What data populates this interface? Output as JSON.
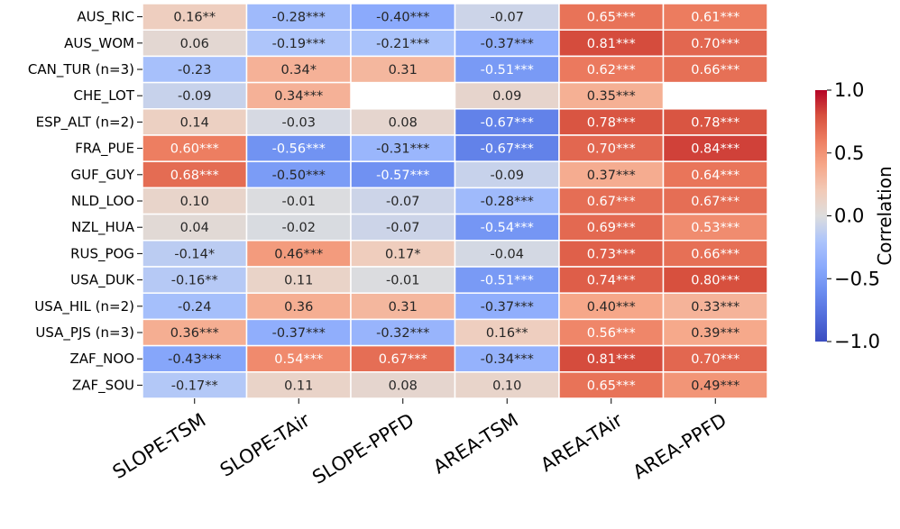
{
  "chart_data": {
    "type": "heatmap",
    "rows": [
      "AUS_RIC",
      "AUS_WOM",
      "CAN_TUR (n=3)",
      "CHE_LOT",
      "ESP_ALT (n=2)",
      "FRA_PUE",
      "GUF_GUY",
      "NLD_LOO",
      "NZL_HUA",
      "RUS_POG",
      "USA_DUK",
      "USA_HIL (n=2)",
      "USA_PJS (n=3)",
      "ZAF_NOO",
      "ZAF_SOU"
    ],
    "columns": [
      "SLOPE-TSM",
      "SLOPE-TAir",
      "SLOPE-PPFD",
      "AREA-TSM",
      "AREA-TAir",
      "AREA-PPFD"
    ],
    "values": [
      [
        0.16,
        -0.28,
        -0.4,
        -0.07,
        0.65,
        0.61
      ],
      [
        0.06,
        -0.19,
        -0.21,
        -0.37,
        0.81,
        0.7
      ],
      [
        -0.23,
        0.34,
        0.31,
        -0.51,
        0.62,
        0.66
      ],
      [
        -0.09,
        0.34,
        null,
        0.09,
        0.35,
        null
      ],
      [
        0.14,
        -0.03,
        0.08,
        -0.67,
        0.78,
        0.78
      ],
      [
        0.6,
        -0.56,
        -0.31,
        -0.67,
        0.7,
        0.84
      ],
      [
        0.68,
        -0.5,
        -0.57,
        -0.09,
        0.37,
        0.64
      ],
      [
        0.1,
        -0.01,
        -0.07,
        -0.28,
        0.67,
        0.67
      ],
      [
        0.04,
        -0.02,
        -0.07,
        -0.54,
        0.69,
        0.53
      ],
      [
        -0.14,
        0.46,
        0.17,
        -0.04,
        0.73,
        0.66
      ],
      [
        -0.16,
        0.11,
        -0.01,
        -0.51,
        0.74,
        0.8
      ],
      [
        -0.24,
        0.36,
        0.31,
        -0.37,
        0.4,
        0.33
      ],
      [
        0.36,
        -0.37,
        -0.32,
        0.16,
        0.56,
        0.39
      ],
      [
        -0.43,
        0.54,
        0.67,
        -0.34,
        0.81,
        0.7
      ],
      [
        -0.17,
        0.11,
        0.08,
        0.1,
        0.65,
        0.49
      ]
    ],
    "annotations": [
      [
        "0.16**",
        "-0.28***",
        "-0.40***",
        "-0.07",
        "0.65***",
        "0.61***"
      ],
      [
        "0.06",
        "-0.19***",
        "-0.21***",
        "-0.37***",
        "0.81***",
        "0.70***"
      ],
      [
        "-0.23",
        "0.34*",
        "0.31",
        "-0.51***",
        "0.62***",
        "0.66***"
      ],
      [
        "-0.09",
        "0.34***",
        "",
        "0.09",
        "0.35***",
        ""
      ],
      [
        "0.14",
        "-0.03",
        "0.08",
        "-0.67***",
        "0.78***",
        "0.78***"
      ],
      [
        "0.60***",
        "-0.56***",
        "-0.31***",
        "-0.67***",
        "0.70***",
        "0.84***"
      ],
      [
        "0.68***",
        "-0.50***",
        "-0.57***",
        "-0.09",
        "0.37***",
        "0.64***"
      ],
      [
        "0.10",
        "-0.01",
        "-0.07",
        "-0.28***",
        "0.67***",
        "0.67***"
      ],
      [
        "0.04",
        "-0.02",
        "-0.07",
        "-0.54***",
        "0.69***",
        "0.53***"
      ],
      [
        "-0.14*",
        "0.46***",
        "0.17*",
        "-0.04",
        "0.73***",
        "0.66***"
      ],
      [
        "-0.16**",
        "0.11",
        "-0.01",
        "-0.51***",
        "0.74***",
        "0.80***"
      ],
      [
        "-0.24",
        "0.36",
        "0.31",
        "-0.37***",
        "0.40***",
        "0.33***"
      ],
      [
        "0.36***",
        "-0.37***",
        "-0.32***",
        "0.16**",
        "0.56***",
        "0.39***"
      ],
      [
        "-0.43***",
        "0.54***",
        "0.67***",
        "-0.34***",
        "0.81***",
        "0.70***"
      ],
      [
        "-0.17**",
        "0.11",
        "0.08",
        "0.10",
        "0.65***",
        "0.49***"
      ]
    ],
    "vmin": -1.0,
    "vmax": 1.0,
    "colormap": "coolwarm",
    "colorbar": {
      "label": "Correlation",
      "ticks": [
        1.0,
        0.5,
        0.0,
        -0.5,
        -1.0
      ],
      "tick_labels": [
        "1.0",
        "0.5",
        "0.0",
        "−0.5",
        "−1.0"
      ]
    }
  }
}
